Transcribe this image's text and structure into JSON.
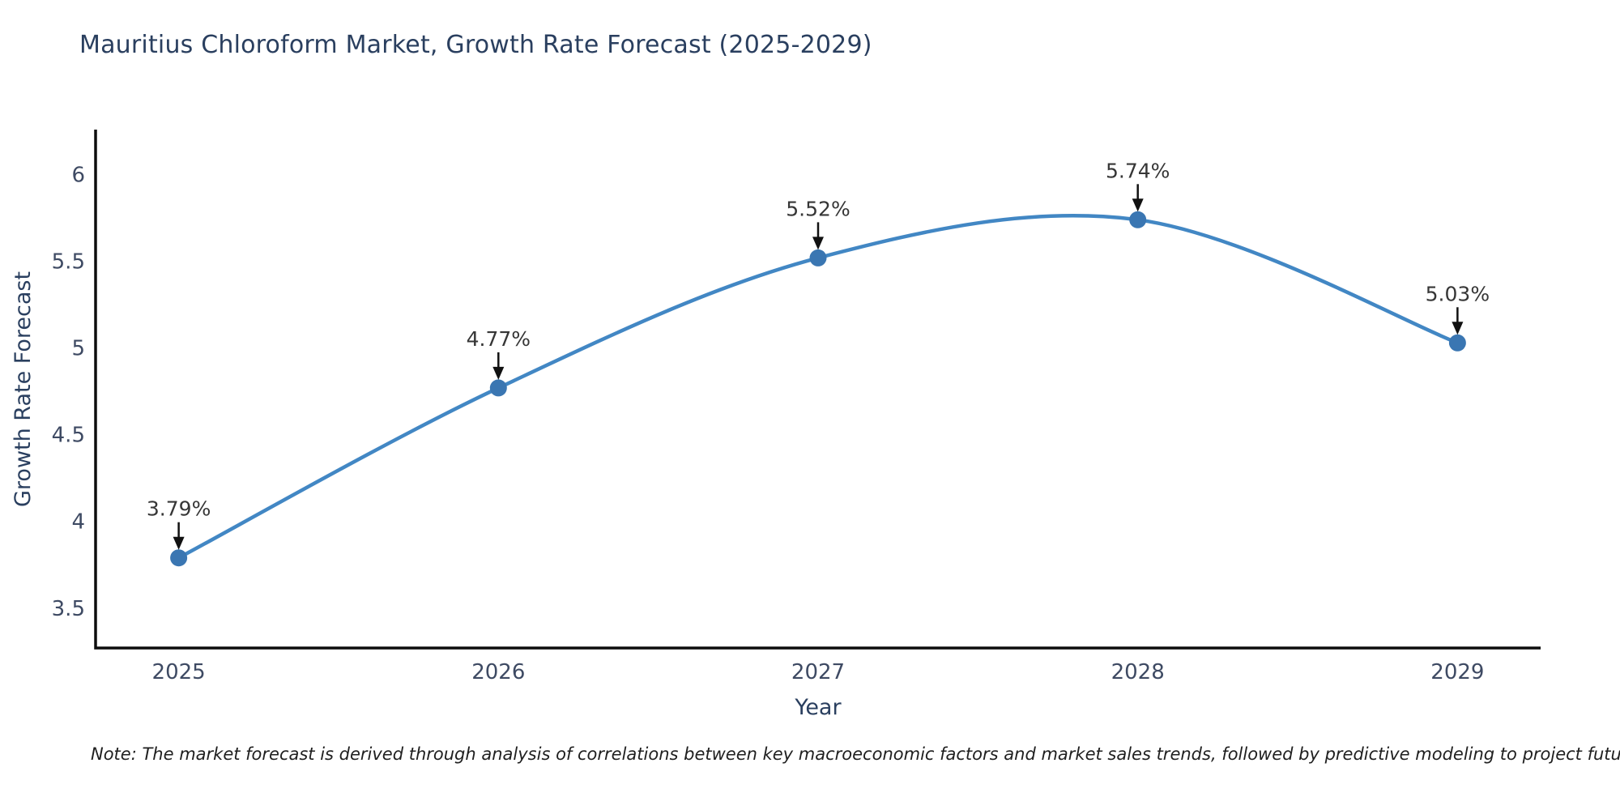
{
  "header": {
    "title": "Mauritius Chloroform Market, Growth Rate Forecast (2025-2029)"
  },
  "footnote": {
    "text": "Note: The market forecast is derived through analysis of correlations between key macroeconomic factors and market sales trends, followed by predictive modeling to project future sales"
  },
  "chart_data": {
    "type": "line",
    "title": "Mauritius Chloroform Market, Growth Rate Forecast (2025-2029)",
    "xlabel": "Year",
    "ylabel": "Growth Rate Forecast",
    "x": [
      2025,
      2026,
      2027,
      2028,
      2029
    ],
    "values": [
      3.79,
      4.77,
      5.52,
      5.74,
      5.03
    ],
    "point_labels": [
      "3.79%",
      "4.77%",
      "5.52%",
      "5.74%",
      "5.03%"
    ],
    "x_tick_labels": [
      "2025",
      "2026",
      "2027",
      "2028",
      "2029"
    ],
    "y_ticks": [
      3.5,
      4,
      4.5,
      5,
      5.5,
      6
    ],
    "y_tick_labels": [
      "3.5",
      "4",
      "4.5",
      "5",
      "5.5",
      "6"
    ],
    "xlim": [
      2024.74,
      2029.26
    ],
    "ylim": [
      3.27,
      6.26
    ],
    "line_shape": "spline",
    "grid": false,
    "legend_position": "none",
    "colors": {
      "line": "#4287c4",
      "marker": "#3a76b2",
      "axis": "#0d0d0d",
      "tick_label": "#3e4a63",
      "annotation_text": "#363636",
      "annotation_arrow": "#111111"
    }
  }
}
